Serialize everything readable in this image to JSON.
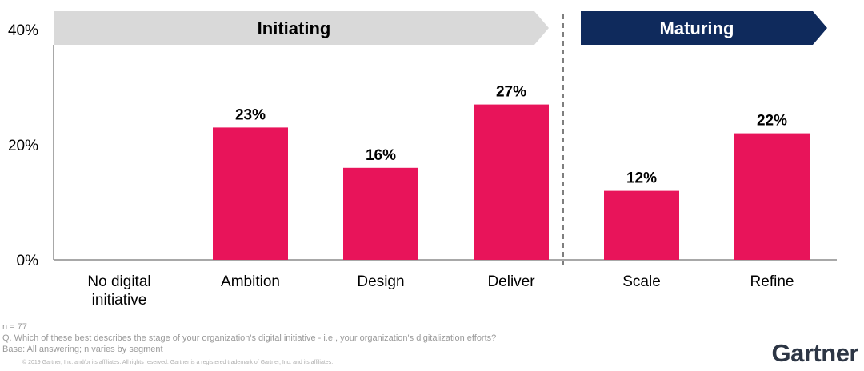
{
  "chart_data": {
    "type": "bar",
    "categories": [
      "No digital\ninitiative",
      "Ambition",
      "Design",
      "Deliver",
      "Scale",
      "Refine"
    ],
    "values": [
      0,
      23,
      16,
      27,
      12,
      22
    ],
    "data_labels": [
      "",
      "23%",
      "16%",
      "27%",
      "12%",
      "22%"
    ],
    "y_ticks": [
      "0%",
      "20%",
      "40%"
    ],
    "y_tick_values": [
      0,
      20,
      40
    ],
    "ylim": [
      0,
      40
    ],
    "grid": false,
    "bar_color": "#e8145a",
    "phases": [
      {
        "label": "Initiating",
        "categories": [
          "No digital\ninitiative",
          "Ambition",
          "Design",
          "Deliver"
        ],
        "color": "#d9d9d9",
        "text_color": "#000000"
      },
      {
        "label": "Maturing",
        "categories": [
          "Scale",
          "Refine"
        ],
        "color": "#0f2a5c",
        "text_color": "#ffffff"
      }
    ]
  },
  "footnotes": {
    "n": "n = 77",
    "question": "Q. Which of these best describes the stage of your organization's digital initiative - i.e., your organization's digitalization efforts?",
    "base": "Base: All answering; n varies by segment",
    "copyright": "© 2019 Gartner, Inc. and/or its affiliates. All rights reserved. Gartner is a registered trademark of Gartner, Inc. and its affiliates."
  },
  "brand": {
    "logo_text": "Gartner"
  }
}
